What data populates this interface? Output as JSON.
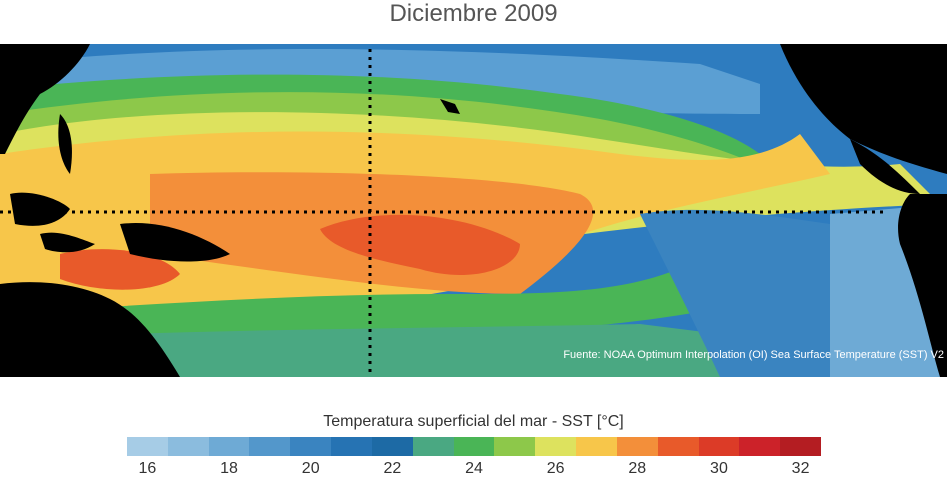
{
  "title": "Diciembre 2009",
  "source": "Fuente: NOAA Optimum Interpolation (OI) Sea Surface Temperature (SST) V2",
  "colorbar": {
    "label": "Temperatura superficial del mar - SST  [°C]",
    "ticks": [
      "16",
      "18",
      "20",
      "22",
      "24",
      "26",
      "28",
      "30",
      "32"
    ],
    "colors": [
      "#a6cce6",
      "#8bbcde",
      "#6eaad5",
      "#5397cb",
      "#3a84c0",
      "#2673b3",
      "#1d6aa5",
      "#4aa882",
      "#4ab556",
      "#8dc84a",
      "#dde25e",
      "#f7c64a",
      "#f38f3a",
      "#e85a2a",
      "#dc3b27",
      "#cc2229",
      "#b41d22"
    ]
  },
  "map": {
    "land_color": "#000000",
    "dotted_lines": [
      "equator",
      "dateline"
    ]
  }
}
